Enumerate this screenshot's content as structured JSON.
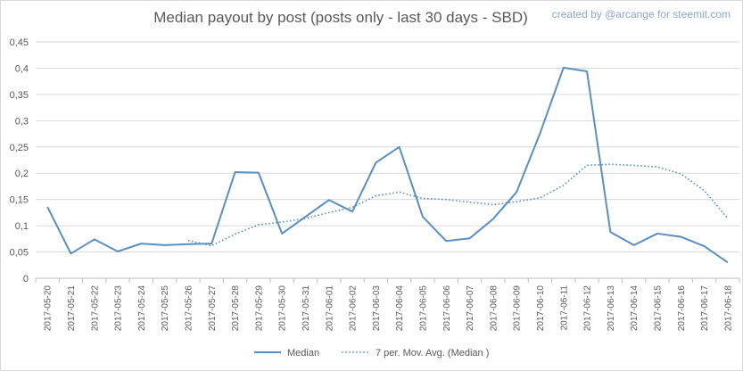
{
  "watermark": "created by @arcange for steemit.com",
  "chart_data": {
    "type": "line",
    "title": "Median payout by post (posts only - last 30 days - SBD)",
    "xlabel": "",
    "ylabel": "",
    "ylim": [
      0,
      0.45
    ],
    "y_ticks": [
      "0",
      "0,05",
      "0,1",
      "0,15",
      "0,2",
      "0,25",
      "0,3",
      "0,35",
      "0,4",
      "0,45"
    ],
    "y_tick_values": [
      0,
      0.05,
      0.1,
      0.15,
      0.2,
      0.25,
      0.3,
      0.35,
      0.4,
      0.45
    ],
    "grid": true,
    "legend": "bottom",
    "categories": [
      "2017-05-20",
      "2017-05-21",
      "2017-05-22",
      "2017-05-23",
      "2017-05-24",
      "2017-05-25",
      "2017-05-26",
      "2017-05-27",
      "2017-05-28",
      "2017-05-29",
      "2017-05-30",
      "2017-05-31",
      "2017-06-01",
      "2017-06-02",
      "2017-06-03",
      "2017-06-04",
      "2017-06-05",
      "2017-06-06",
      "2017-06-07",
      "2017-06-08",
      "2017-06-09",
      "2017-06-10",
      "2017-06-11",
      "2017-06-12",
      "2017-06-13",
      "2017-06-14",
      "2017-06-15",
      "2017-06-16",
      "2017-06-17",
      "2017-06-18"
    ],
    "series": [
      {
        "name": "Median",
        "color": "#5b8fc0",
        "style": "solid",
        "values": [
          0.136,
          0.047,
          0.074,
          0.051,
          0.066,
          0.063,
          0.065,
          0.066,
          0.202,
          0.201,
          0.085,
          0.117,
          0.149,
          0.127,
          0.22,
          0.25,
          0.117,
          0.071,
          0.076,
          0.113,
          0.164,
          0.276,
          0.401,
          0.394,
          0.088,
          0.063,
          0.085,
          0.079,
          0.061,
          0.03
        ]
      },
      {
        "name": "7 per. Mov. Avg. (Median )",
        "color": "#5b8fc0",
        "style": "dotted",
        "values": [
          null,
          null,
          null,
          null,
          null,
          null,
          0.072,
          0.062,
          0.084,
          0.102,
          0.107,
          0.114,
          0.125,
          0.135,
          0.157,
          0.164,
          0.152,
          0.15,
          0.145,
          0.14,
          0.146,
          0.153,
          0.177,
          0.215,
          0.217,
          0.215,
          0.212,
          0.199,
          0.167,
          0.114
        ]
      }
    ]
  }
}
